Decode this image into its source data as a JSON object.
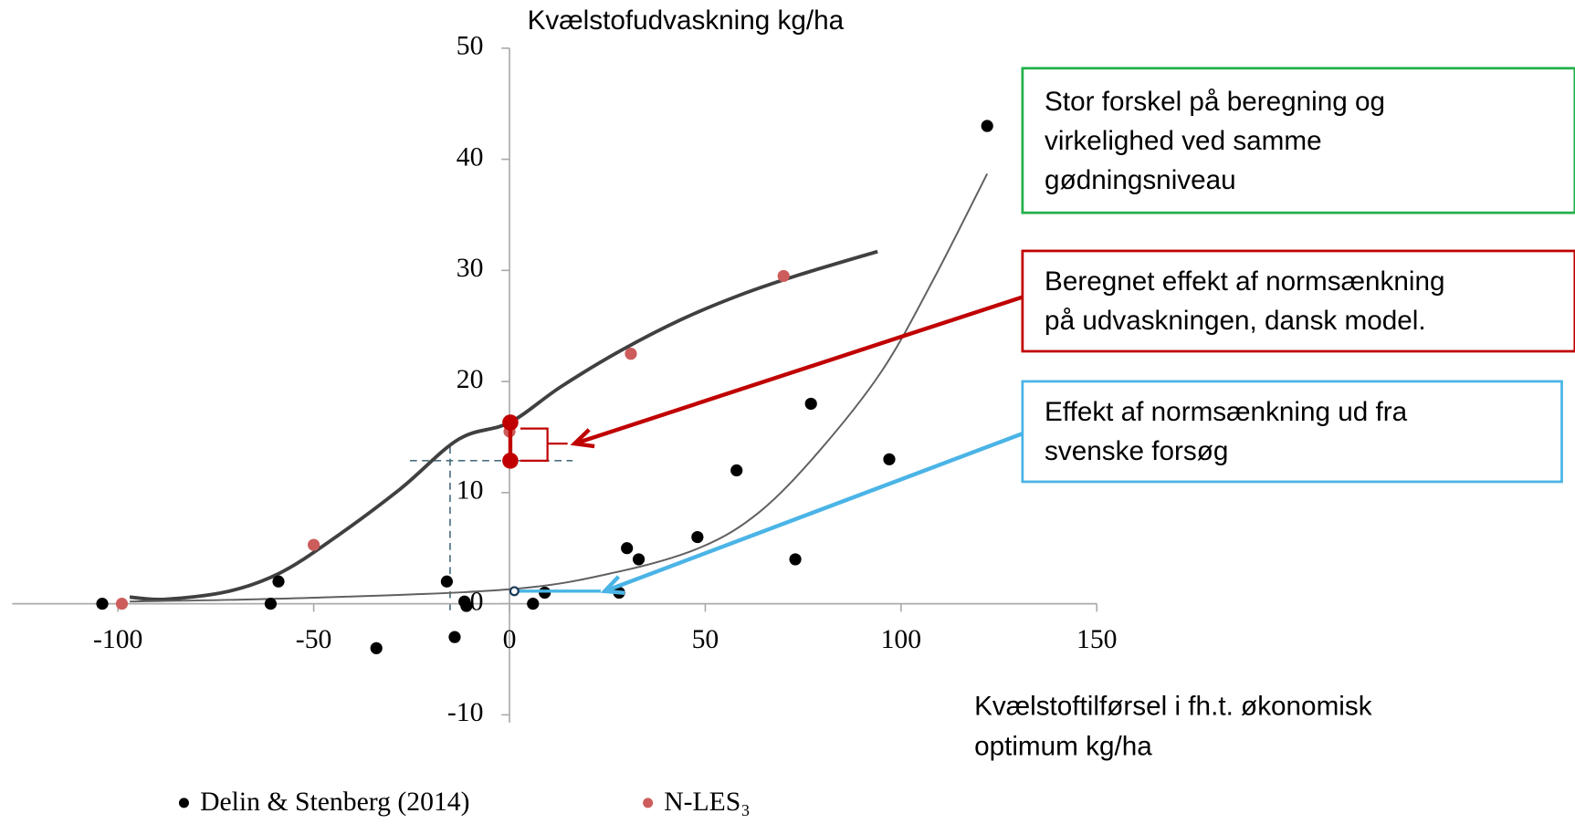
{
  "chart_data": {
    "type": "scatter",
    "y_axis_label": "Kvælstofudvaskning kg/ha",
    "x_axis_label": [
      "Kvælstoftilførsel i fh.t. økonomisk",
      "optimum kg/ha"
    ],
    "xlim": [
      -127,
      150
    ],
    "ylim": [
      -10.7,
      50
    ],
    "xticks": [
      -100,
      -50,
      0,
      50,
      100,
      150
    ],
    "yticks": [
      -10,
      0,
      10,
      20,
      30,
      40,
      50
    ],
    "legend": "bottom",
    "series": [
      {
        "name": "Delin & Stenberg (2014)",
        "color": "#000000",
        "x": [
          -104,
          -59,
          -61,
          -34,
          -16,
          -14,
          -11.5,
          -11,
          6,
          9,
          28,
          30,
          33,
          48,
          58,
          73,
          77,
          97,
          122
        ],
        "values": [
          0,
          2,
          0,
          -4,
          2,
          -3,
          0.2,
          -0.2,
          0,
          1,
          1,
          5,
          4,
          6,
          12,
          4,
          18,
          13,
          43
        ]
      },
      {
        "name": "N-LES₃",
        "color": "#cd5c5c",
        "x": [
          -99,
          -50,
          0,
          31,
          70
        ],
        "values": [
          0,
          5.3,
          15.5,
          22.5,
          29.5
        ]
      }
    ],
    "curves": [
      {
        "color": "#404040",
        "x": [
          -97,
          -88,
          -72,
          -59,
          -46,
          -28,
          -13,
          0,
          13,
          28,
          44,
          59,
          74,
          94
        ],
        "values": [
          0.6,
          0.4,
          1.1,
          2.7,
          5.6,
          10.3,
          14.8,
          16.3,
          19.5,
          22.7,
          25.6,
          27.8,
          29.6,
          31.7
        ]
      },
      {
        "color": "#606060",
        "x": [
          -97,
          -54,
          0,
          28,
          49,
          64,
          79,
          95,
          108,
          122
        ],
        "values": [
          0.2,
          0.5,
          1.3,
          2.9,
          5.1,
          8.3,
          13.7,
          20.9,
          29,
          38.7
        ]
      }
    ],
    "annotations": [
      {
        "color": "#22b04a",
        "lines": [
          "Stor forskel på beregning og",
          "virkelighed ved samme",
          "gødningsniveau"
        ]
      },
      {
        "color": "#c00000",
        "lines": [
          "Beregnet effekt af normsænkning",
          "på udvaskningen, dansk model."
        ]
      },
      {
        "color": "#4ab4e6",
        "lines": [
          "Effekt af normsænkning ud fra",
          "svenske forsøg"
        ]
      }
    ]
  }
}
